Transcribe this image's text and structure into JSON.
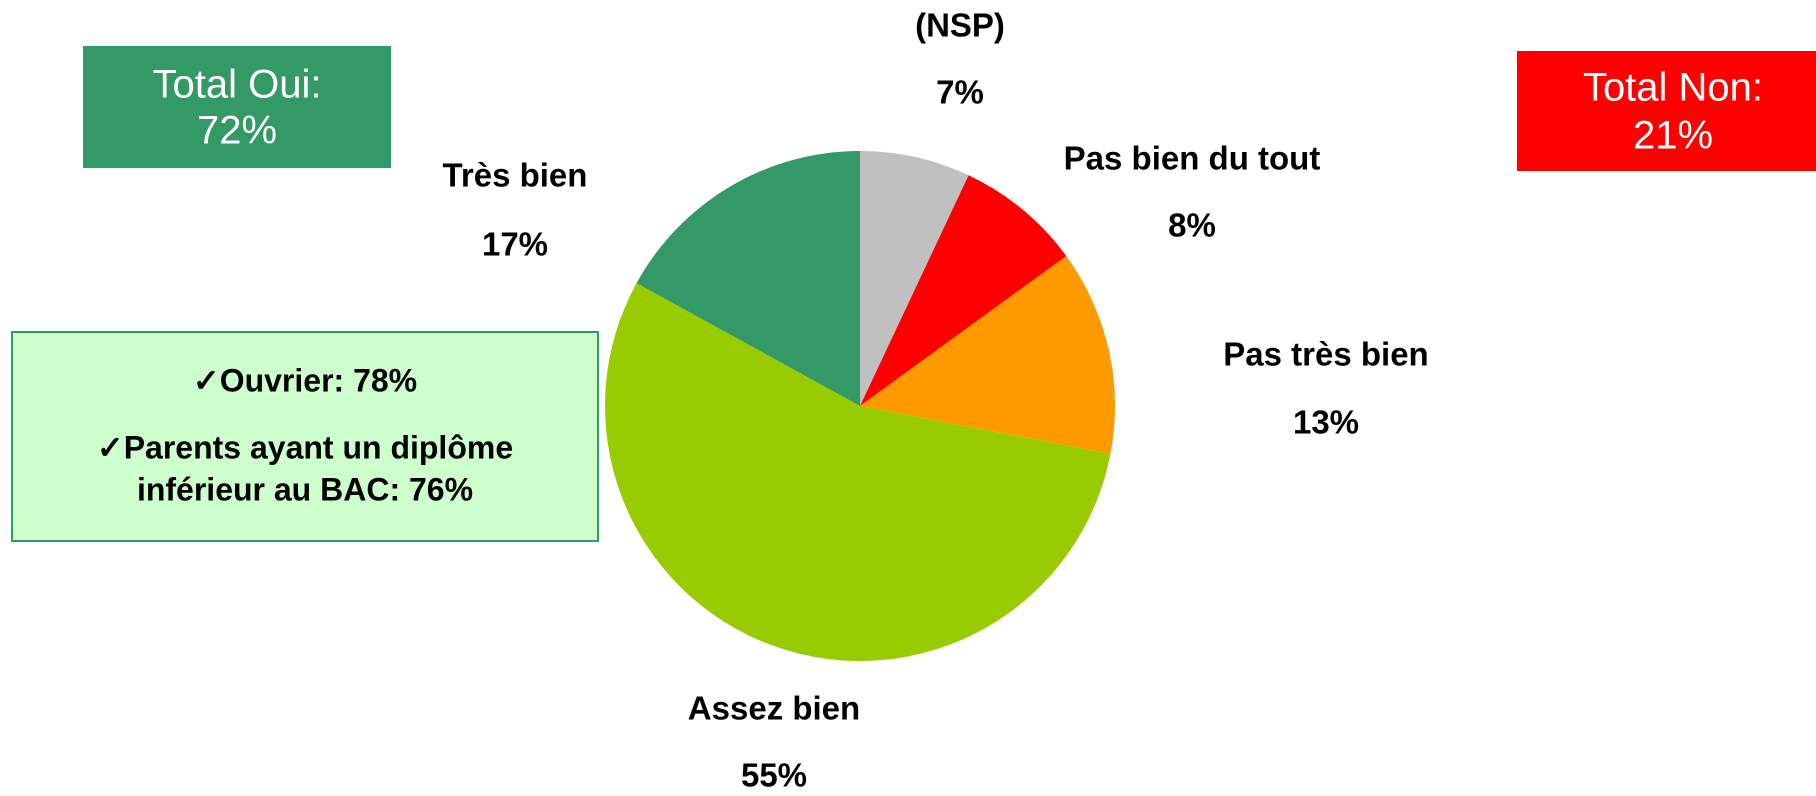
{
  "chart_data": {
    "type": "pie",
    "categories": [
      "(NSP)",
      "Pas bien du tout",
      "Pas très bien",
      "Assez bien",
      "Très bien"
    ],
    "values": [
      7,
      8,
      13,
      55,
      17
    ],
    "value_labels": [
      "7%",
      "8%",
      "13%",
      "55%",
      "17%"
    ],
    "colors": [
      "#c0c0c0",
      "#ff0000",
      "#ff9900",
      "#99cc00",
      "#339966"
    ],
    "annotations": {
      "total_oui": {
        "lines": [
          "Total Oui:",
          "72%"
        ],
        "color": "#339966"
      },
      "total_non": {
        "lines": [
          "Total Non:",
          "21%"
        ],
        "color": "#ff0000"
      },
      "notes": {
        "lines": [
          "✓Ouvrier: 78%",
          "✓Parents ayant un diplôme",
          "inférieur au BAC: 76%"
        ],
        "color": "#ccffcc",
        "border": "#339966"
      }
    }
  }
}
